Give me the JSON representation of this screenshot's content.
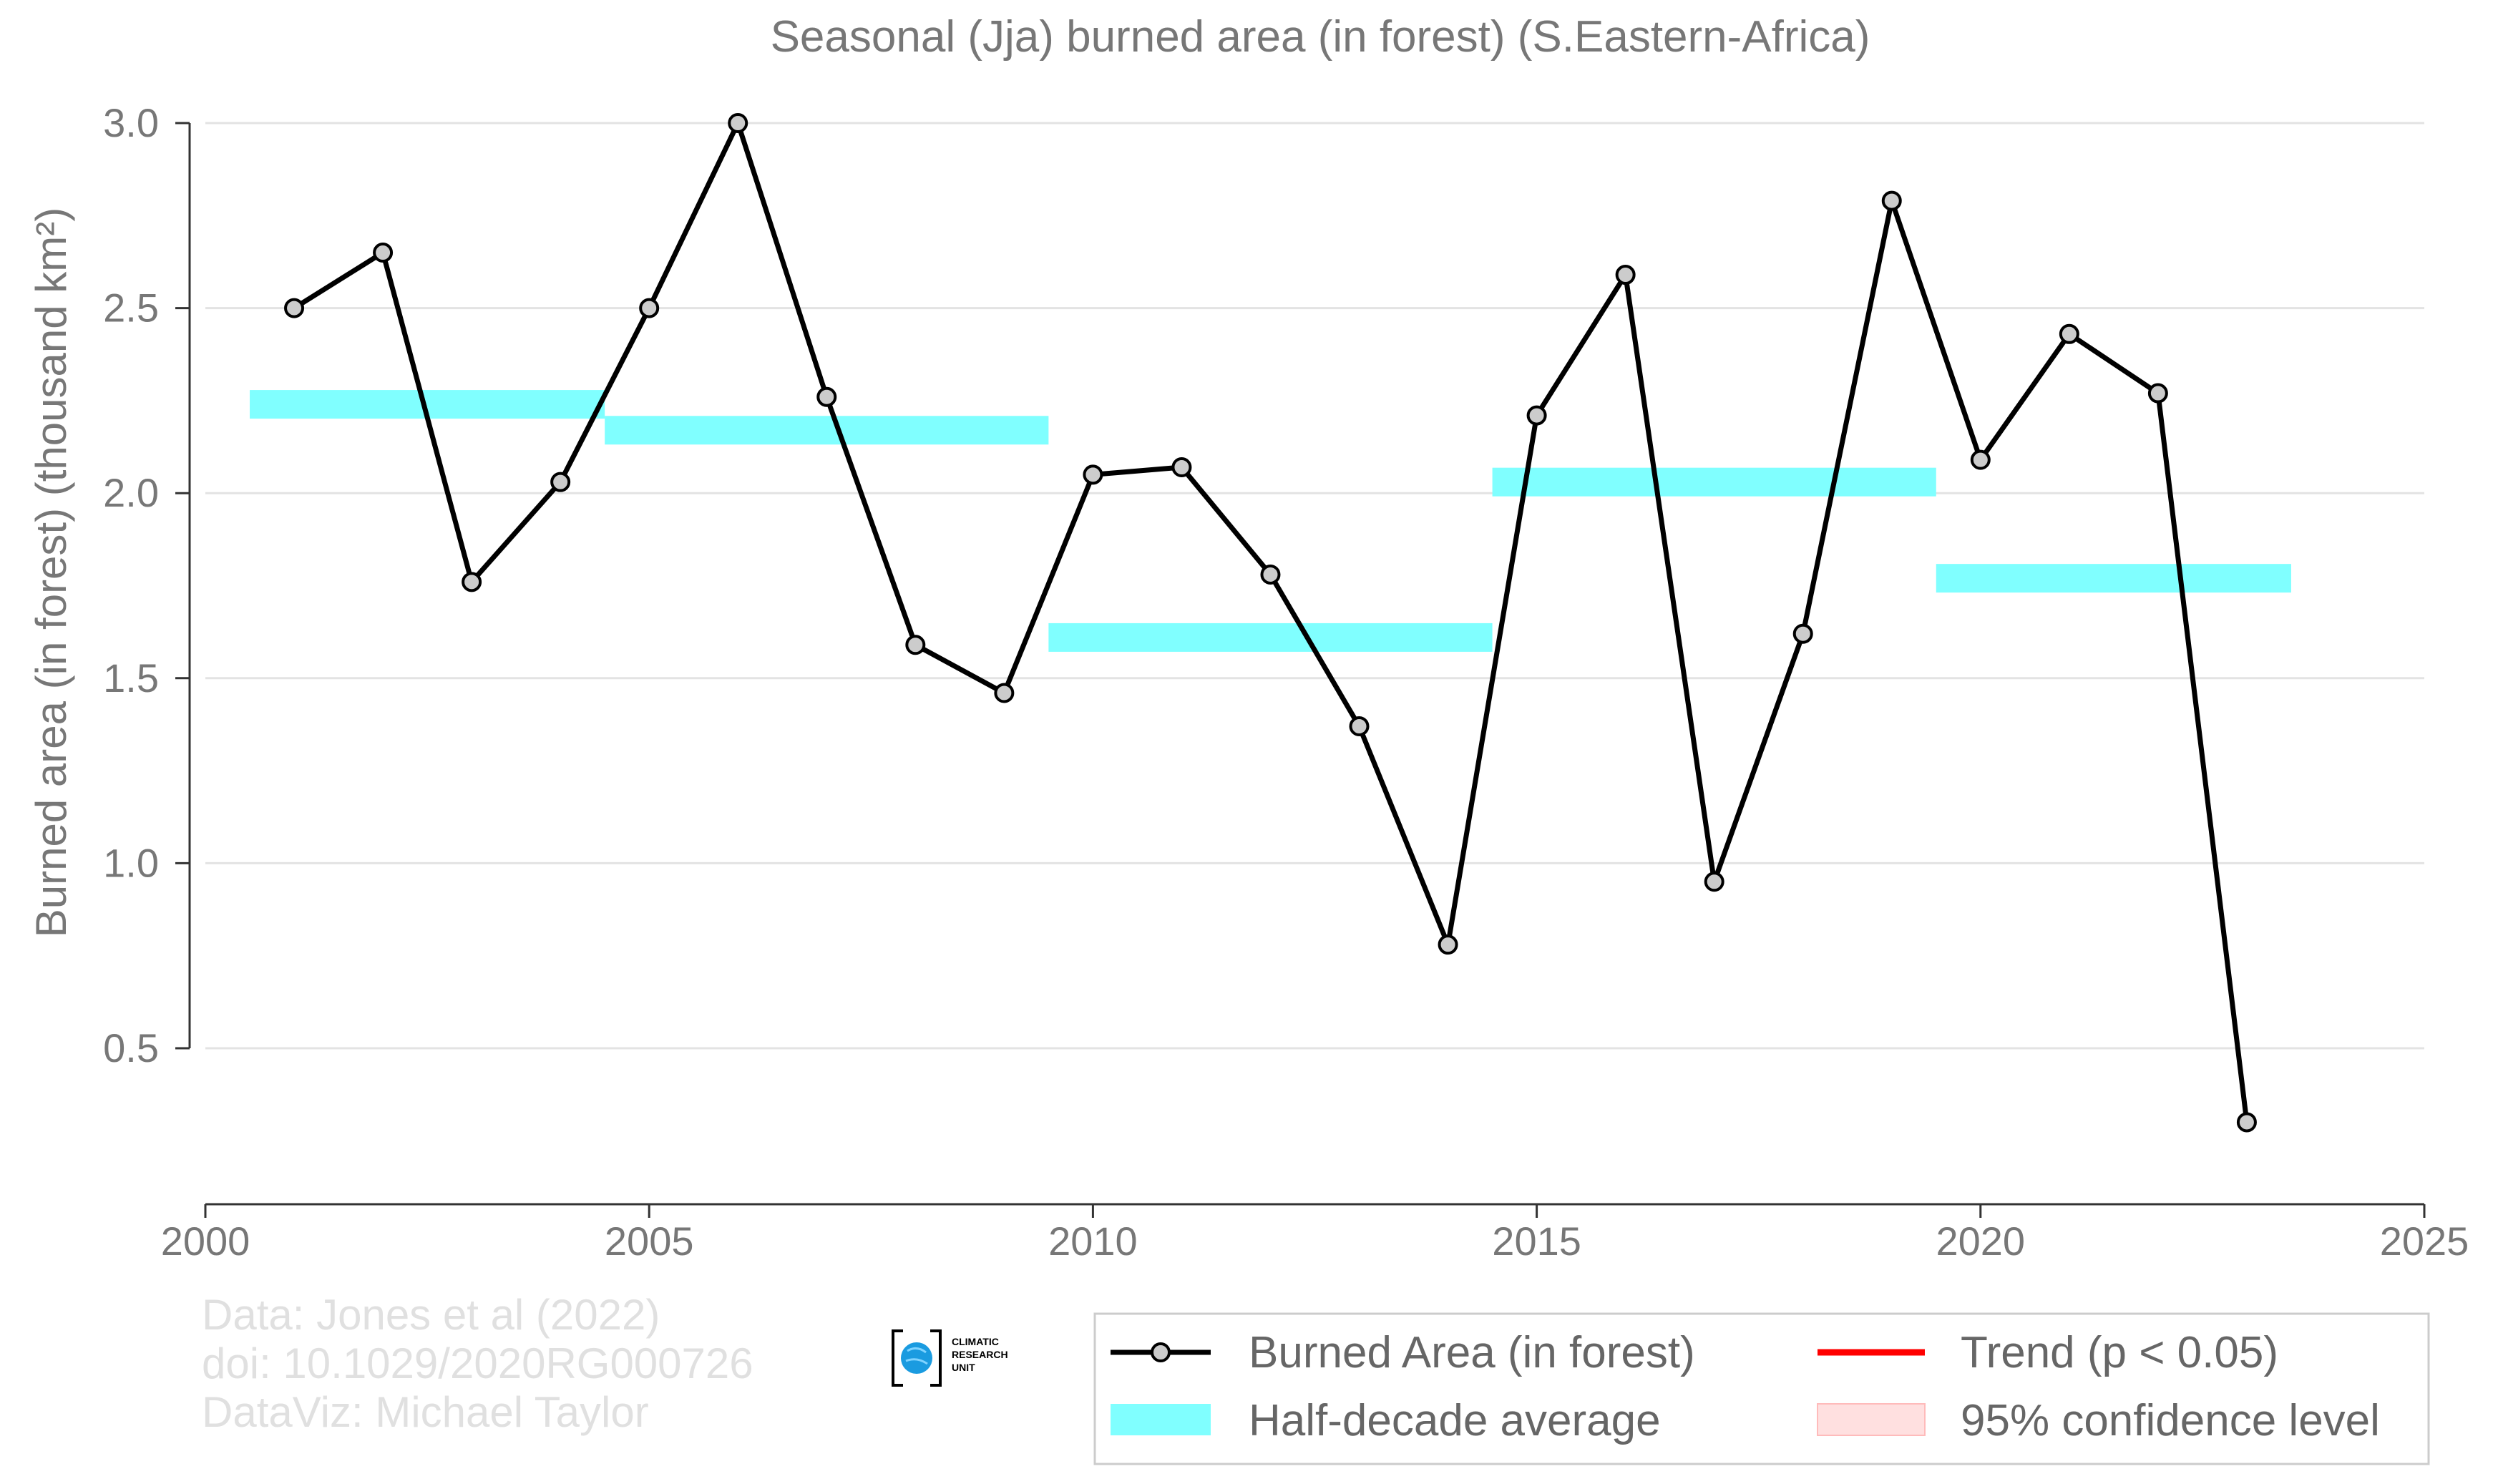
{
  "chart_data": {
    "type": "line",
    "title": "Seasonal (Jja) burned area (in forest) (S.Eastern-Africa)",
    "ylabel": "Burned area (in forest) (thousand km²)",
    "xlabel": "",
    "xlim": [
      2000,
      2025
    ],
    "ylim": [
      0.1,
      3.1
    ],
    "x_ticks": [
      "2000",
      "2005",
      "2010",
      "2015",
      "2020",
      "2025"
    ],
    "y_ticks": [
      "0.5",
      "1.0",
      "1.5",
      "2.0",
      "2.5",
      "3.0"
    ],
    "grid": "horizontal",
    "series": [
      {
        "name": "Burned Area (in forest)",
        "color": "#000000",
        "x": [
          2001,
          2002,
          2003,
          2004,
          2005,
          2006,
          2007,
          2008,
          2009,
          2010,
          2011,
          2012,
          2013,
          2014,
          2015,
          2016,
          2017,
          2018,
          2019,
          2020,
          2021,
          2022,
          2023
        ],
        "y": [
          2.5,
          2.65,
          1.76,
          2.03,
          2.5,
          3.0,
          2.26,
          1.59,
          1.46,
          2.05,
          2.07,
          1.78,
          1.37,
          0.78,
          2.21,
          2.59,
          0.95,
          1.62,
          2.79,
          2.09,
          2.43,
          2.27,
          0.3
        ]
      }
    ],
    "half_decade_average": {
      "name": "Half-decade average",
      "color": "#80ffff",
      "segments": [
        {
          "x0": 2000.5,
          "x1": 2004.5,
          "y": 2.24
        },
        {
          "x0": 2004.5,
          "x1": 2009.5,
          "y": 2.17
        },
        {
          "x0": 2009.5,
          "x1": 2014.5,
          "y": 1.61
        },
        {
          "x0": 2014.5,
          "x1": 2019.5,
          "y": 2.03
        },
        {
          "x0": 2019.5,
          "x1": 2023.5,
          "y": 1.77
        }
      ]
    },
    "legend": {
      "position": "bottom-right",
      "items": [
        {
          "label": "Burned Area (in forest)",
          "kind": "line-marker",
          "color": "#000000"
        },
        {
          "label": "Trend (p < 0.05)",
          "kind": "line",
          "color": "#ff0000"
        },
        {
          "label": "Half-decade average",
          "kind": "band",
          "color": "#80ffff"
        },
        {
          "label": "95% confidence level",
          "kind": "band",
          "color": "#ffe0e0"
        }
      ]
    }
  },
  "credits": {
    "line1": "Data: Jones et al (2022)",
    "line2": "doi: 10.1029/2020RG000726",
    "line3": "DataViz: Michael Taylor"
  },
  "logo": {
    "line1": "CLIMATIC",
    "line2": "RESEARCH",
    "line3": "UNIT",
    "icon": "globe-icon"
  }
}
